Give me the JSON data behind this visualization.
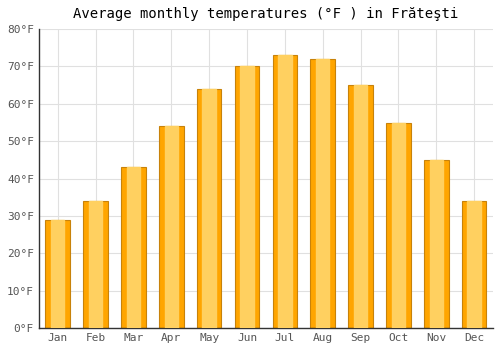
{
  "title": "Average monthly temperatures (°F ) in Frăteşti",
  "months": [
    "Jan",
    "Feb",
    "Mar",
    "Apr",
    "May",
    "Jun",
    "Jul",
    "Aug",
    "Sep",
    "Oct",
    "Nov",
    "Dec"
  ],
  "values": [
    29,
    34,
    43,
    54,
    64,
    70,
    73,
    72,
    65,
    55,
    45,
    34
  ],
  "bar_color": "#FFA500",
  "bar_edge_color": "#C8820A",
  "ylim": [
    0,
    80
  ],
  "yticks": [
    0,
    10,
    20,
    30,
    40,
    50,
    60,
    70,
    80
  ],
  "ytick_labels": [
    "0°F",
    "10°F",
    "20°F",
    "30°F",
    "40°F",
    "50°F",
    "60°F",
    "70°F",
    "80°F"
  ],
  "background_color": "#FFFFFF",
  "grid_color": "#E0E0E0",
  "title_fontsize": 10,
  "tick_fontsize": 8
}
